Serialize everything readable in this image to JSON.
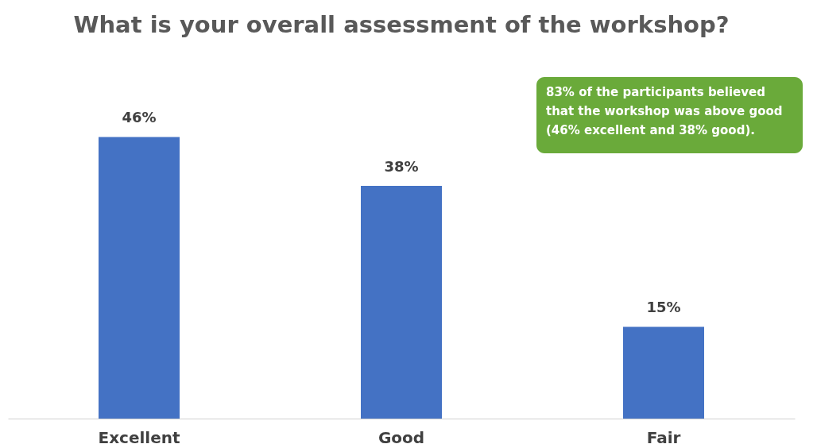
{
  "chart_data": {
    "type": "bar",
    "title": "What is your overall assessment of the workshop?",
    "categories": [
      "Excellent",
      "Good",
      "Fair"
    ],
    "values": [
      46,
      38,
      15
    ],
    "color": "#4472c4",
    "value_labels": [
      "46%",
      "38%",
      "15%"
    ],
    "annotations": [
      "83% of the participants believed that the workshop was above good (46% excellent and 38% good)."
    ]
  }
}
